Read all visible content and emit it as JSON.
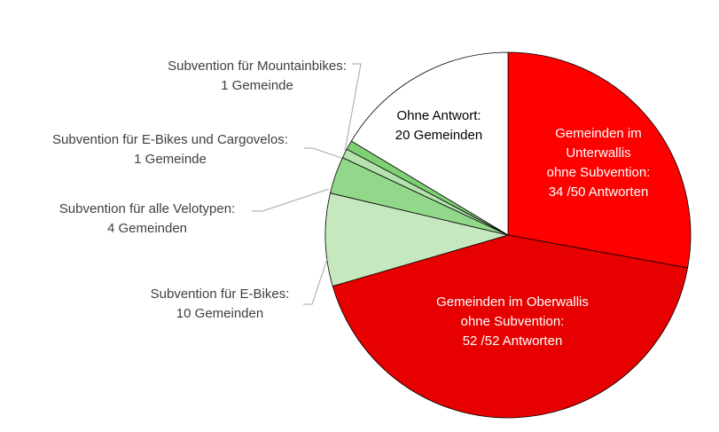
{
  "chart_data": {
    "type": "pie",
    "title": "",
    "slices": [
      {
        "label_lines": [
          "Gemeinden im",
          "Unterwallis",
          "ohne Subvention:",
          "34 /50 Antworten"
        ],
        "value": 34,
        "color": "#ff0000",
        "label_color": "light"
      },
      {
        "label_lines": [
          "Gemeinden im Oberwallis",
          "ohne Subvention:",
          "52 /52 Antworten"
        ],
        "value": 52,
        "color": "#e60000",
        "label_color": "light"
      },
      {
        "label_lines": [
          "Subvention für E-Bikes:",
          "10 Gemeinden"
        ],
        "value": 10,
        "color": "#c6e8bf",
        "label_color": "outside"
      },
      {
        "label_lines": [
          "Subvention für alle Velotypen:",
          "4 Gemeinden"
        ],
        "value": 4,
        "color": "#92d88a",
        "label_color": "outside"
      },
      {
        "label_lines": [
          "Subvention für E-Bikes und Cargovelos:",
          "1 Gemeinde"
        ],
        "value": 1,
        "color": "#b5e3ad",
        "label_color": "outside"
      },
      {
        "label_lines": [
          "Subvention für Mountainbikes:",
          "1 Gemeinde"
        ],
        "value": 1,
        "color": "#7fcf74",
        "label_color": "outside"
      },
      {
        "label_lines": [
          "Ohne Antwort:",
          "20 Gemeinden"
        ],
        "value": 20,
        "color": "#ffffff",
        "label_color": "dark"
      }
    ]
  }
}
